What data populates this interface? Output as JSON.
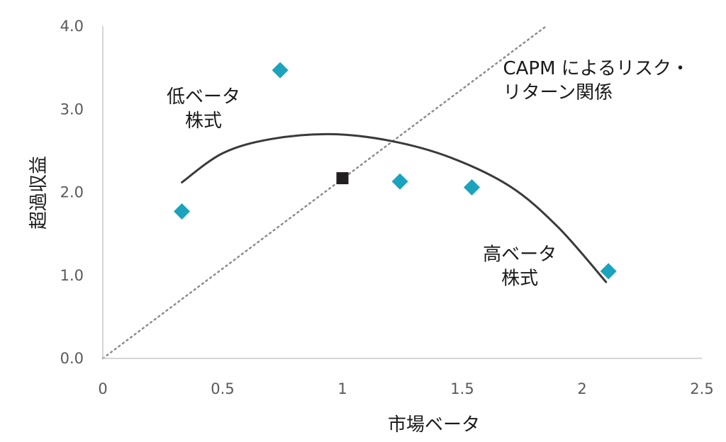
{
  "chart_data": {
    "type": "scatter",
    "title": "",
    "xlabel": "市場ベータ",
    "ylabel": "超過収益",
    "xlim": [
      0,
      2.5
    ],
    "ylim": [
      0,
      4
    ],
    "x_ticks": [
      "0",
      "0.5",
      "1",
      "1.5",
      "2",
      "2.5"
    ],
    "y_ticks": [
      "0.0",
      "1.0",
      "2.0",
      "3.0",
      "4.0"
    ],
    "grid": false,
    "series": [
      {
        "marker": "diamond",
        "color": "#1ba3bd",
        "points": [
          {
            "x": 0.33,
            "y": 1.77
          },
          {
            "x": 0.74,
            "y": 3.47
          },
          {
            "x": 1.24,
            "y": 2.13
          },
          {
            "x": 1.54,
            "y": 2.06
          },
          {
            "x": 2.11,
            "y": 1.05
          }
        ]
      },
      {
        "marker": "square",
        "color": "#231f20",
        "points": [
          {
            "x": 1.0,
            "y": 2.17
          }
        ]
      }
    ],
    "reference_line": {
      "style": "dotted",
      "color": "#8c8c8c",
      "points": [
        {
          "x": 0,
          "y": 0
        },
        {
          "x": 1.85,
          "y": 4.0
        }
      ]
    },
    "trend_curve": {
      "color": "#3a3a3a",
      "points": [
        {
          "x": 0.33,
          "y": 2.12
        },
        {
          "x": 0.5,
          "y": 2.47
        },
        {
          "x": 0.7,
          "y": 2.64
        },
        {
          "x": 0.95,
          "y": 2.7
        },
        {
          "x": 1.2,
          "y": 2.62
        },
        {
          "x": 1.45,
          "y": 2.42
        },
        {
          "x": 1.7,
          "y": 2.07
        },
        {
          "x": 1.9,
          "y": 1.58
        },
        {
          "x": 2.1,
          "y": 0.92
        }
      ]
    },
    "annotations": [
      {
        "lines": [
          "CAPM によるリスク・",
          "リターン関係"
        ],
        "x": 1.67,
        "y": 3.42,
        "align": "start"
      },
      {
        "lines": [
          "低ベータ",
          "株式"
        ],
        "x": 0.42,
        "y": 3.08,
        "align": "middle"
      },
      {
        "lines": [
          "高ベータ",
          "株式"
        ],
        "x": 1.74,
        "y": 1.18,
        "align": "middle"
      }
    ]
  }
}
